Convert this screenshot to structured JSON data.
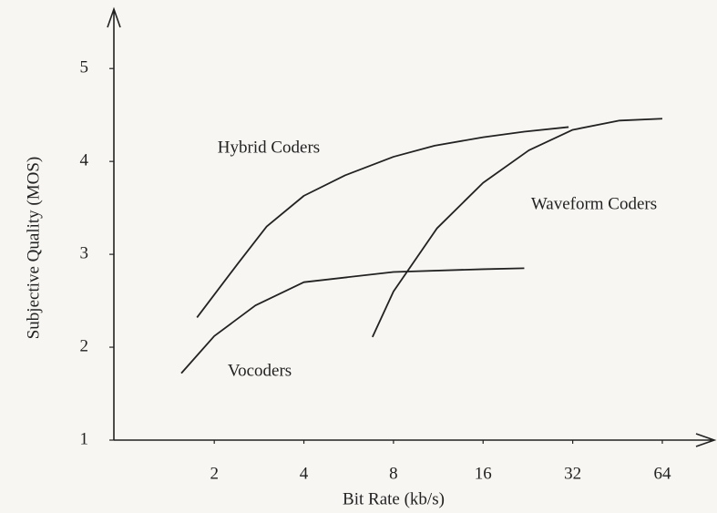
{
  "chart_data": {
    "type": "line",
    "xlabel": "Bit Rate (kb/s)",
    "ylabel": "Subjective Quality (MOS)",
    "xscale": "log",
    "xlim": [
      0.92,
      93
    ],
    "ylim": [
      1,
      5.62
    ],
    "xticks": [
      2,
      4,
      8,
      16,
      32,
      64
    ],
    "yticks": [
      1,
      2,
      3,
      4,
      5
    ],
    "series": [
      {
        "name": "Hybrid Coders",
        "color": "#222222",
        "x": [
          1.75,
          2.4,
          3,
          4,
          5.5,
          8,
          11,
          16,
          22,
          31
        ],
        "values": [
          2.32,
          2.9,
          3.3,
          3.63,
          3.85,
          4.05,
          4.17,
          4.26,
          4.32,
          4.37
        ]
      },
      {
        "name": "Waveform Coders",
        "color": "#222222",
        "x": [
          6.8,
          8,
          11.2,
          16,
          22.8,
          32,
          46,
          64
        ],
        "values": [
          2.11,
          2.6,
          3.28,
          3.77,
          4.12,
          4.34,
          4.44,
          4.46
        ]
      },
      {
        "name": "Vocoders",
        "color": "#222222",
        "x": [
          1.55,
          2,
          2.75,
          4,
          8,
          16,
          22
        ],
        "values": [
          1.72,
          2.12,
          2.45,
          2.7,
          2.81,
          2.84,
          2.85
        ]
      }
    ]
  }
}
